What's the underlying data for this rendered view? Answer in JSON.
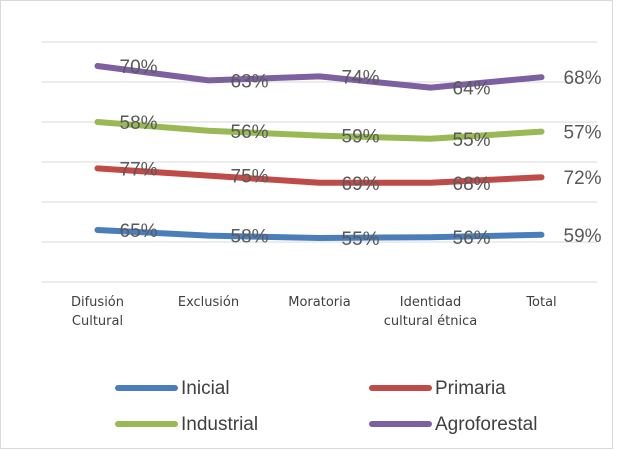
{
  "chart_data": {
    "type": "line",
    "stacked": true,
    "categories": [
      "Difusión Cultural",
      "Exclusión",
      "Moratoria",
      "Identidad cultural étnica",
      "Total"
    ],
    "series": [
      {
        "name": "Inicial",
        "color": "#4a7ebb",
        "values": [
          65,
          58,
          55,
          56,
          59
        ],
        "value_labels": [
          "65%",
          "58%",
          "55%",
          "56%",
          "59%"
        ]
      },
      {
        "name": "Primaria",
        "color": "#be4b48",
        "values": [
          77,
          75,
          69,
          68,
          72
        ],
        "value_labels": [
          "77%",
          "75%",
          "69%",
          "68%",
          "72%"
        ]
      },
      {
        "name": "Industrial",
        "color": "#98b954",
        "values": [
          58,
          56,
          59,
          55,
          57
        ],
        "value_labels": [
          "58%",
          "56%",
          "59%",
          "55%",
          "57%"
        ]
      },
      {
        "name": "Agroforestal",
        "color": "#7d60a0",
        "values": [
          70,
          63,
          74,
          64,
          68
        ],
        "value_labels": [
          "70%",
          "63%",
          "74%",
          "64%",
          "68%"
        ]
      }
    ],
    "ylim": [
      0,
      300
    ],
    "yticks": [
      0,
      50,
      100,
      150,
      200,
      250,
      300
    ],
    "grid": true,
    "legend": "bottom"
  }
}
